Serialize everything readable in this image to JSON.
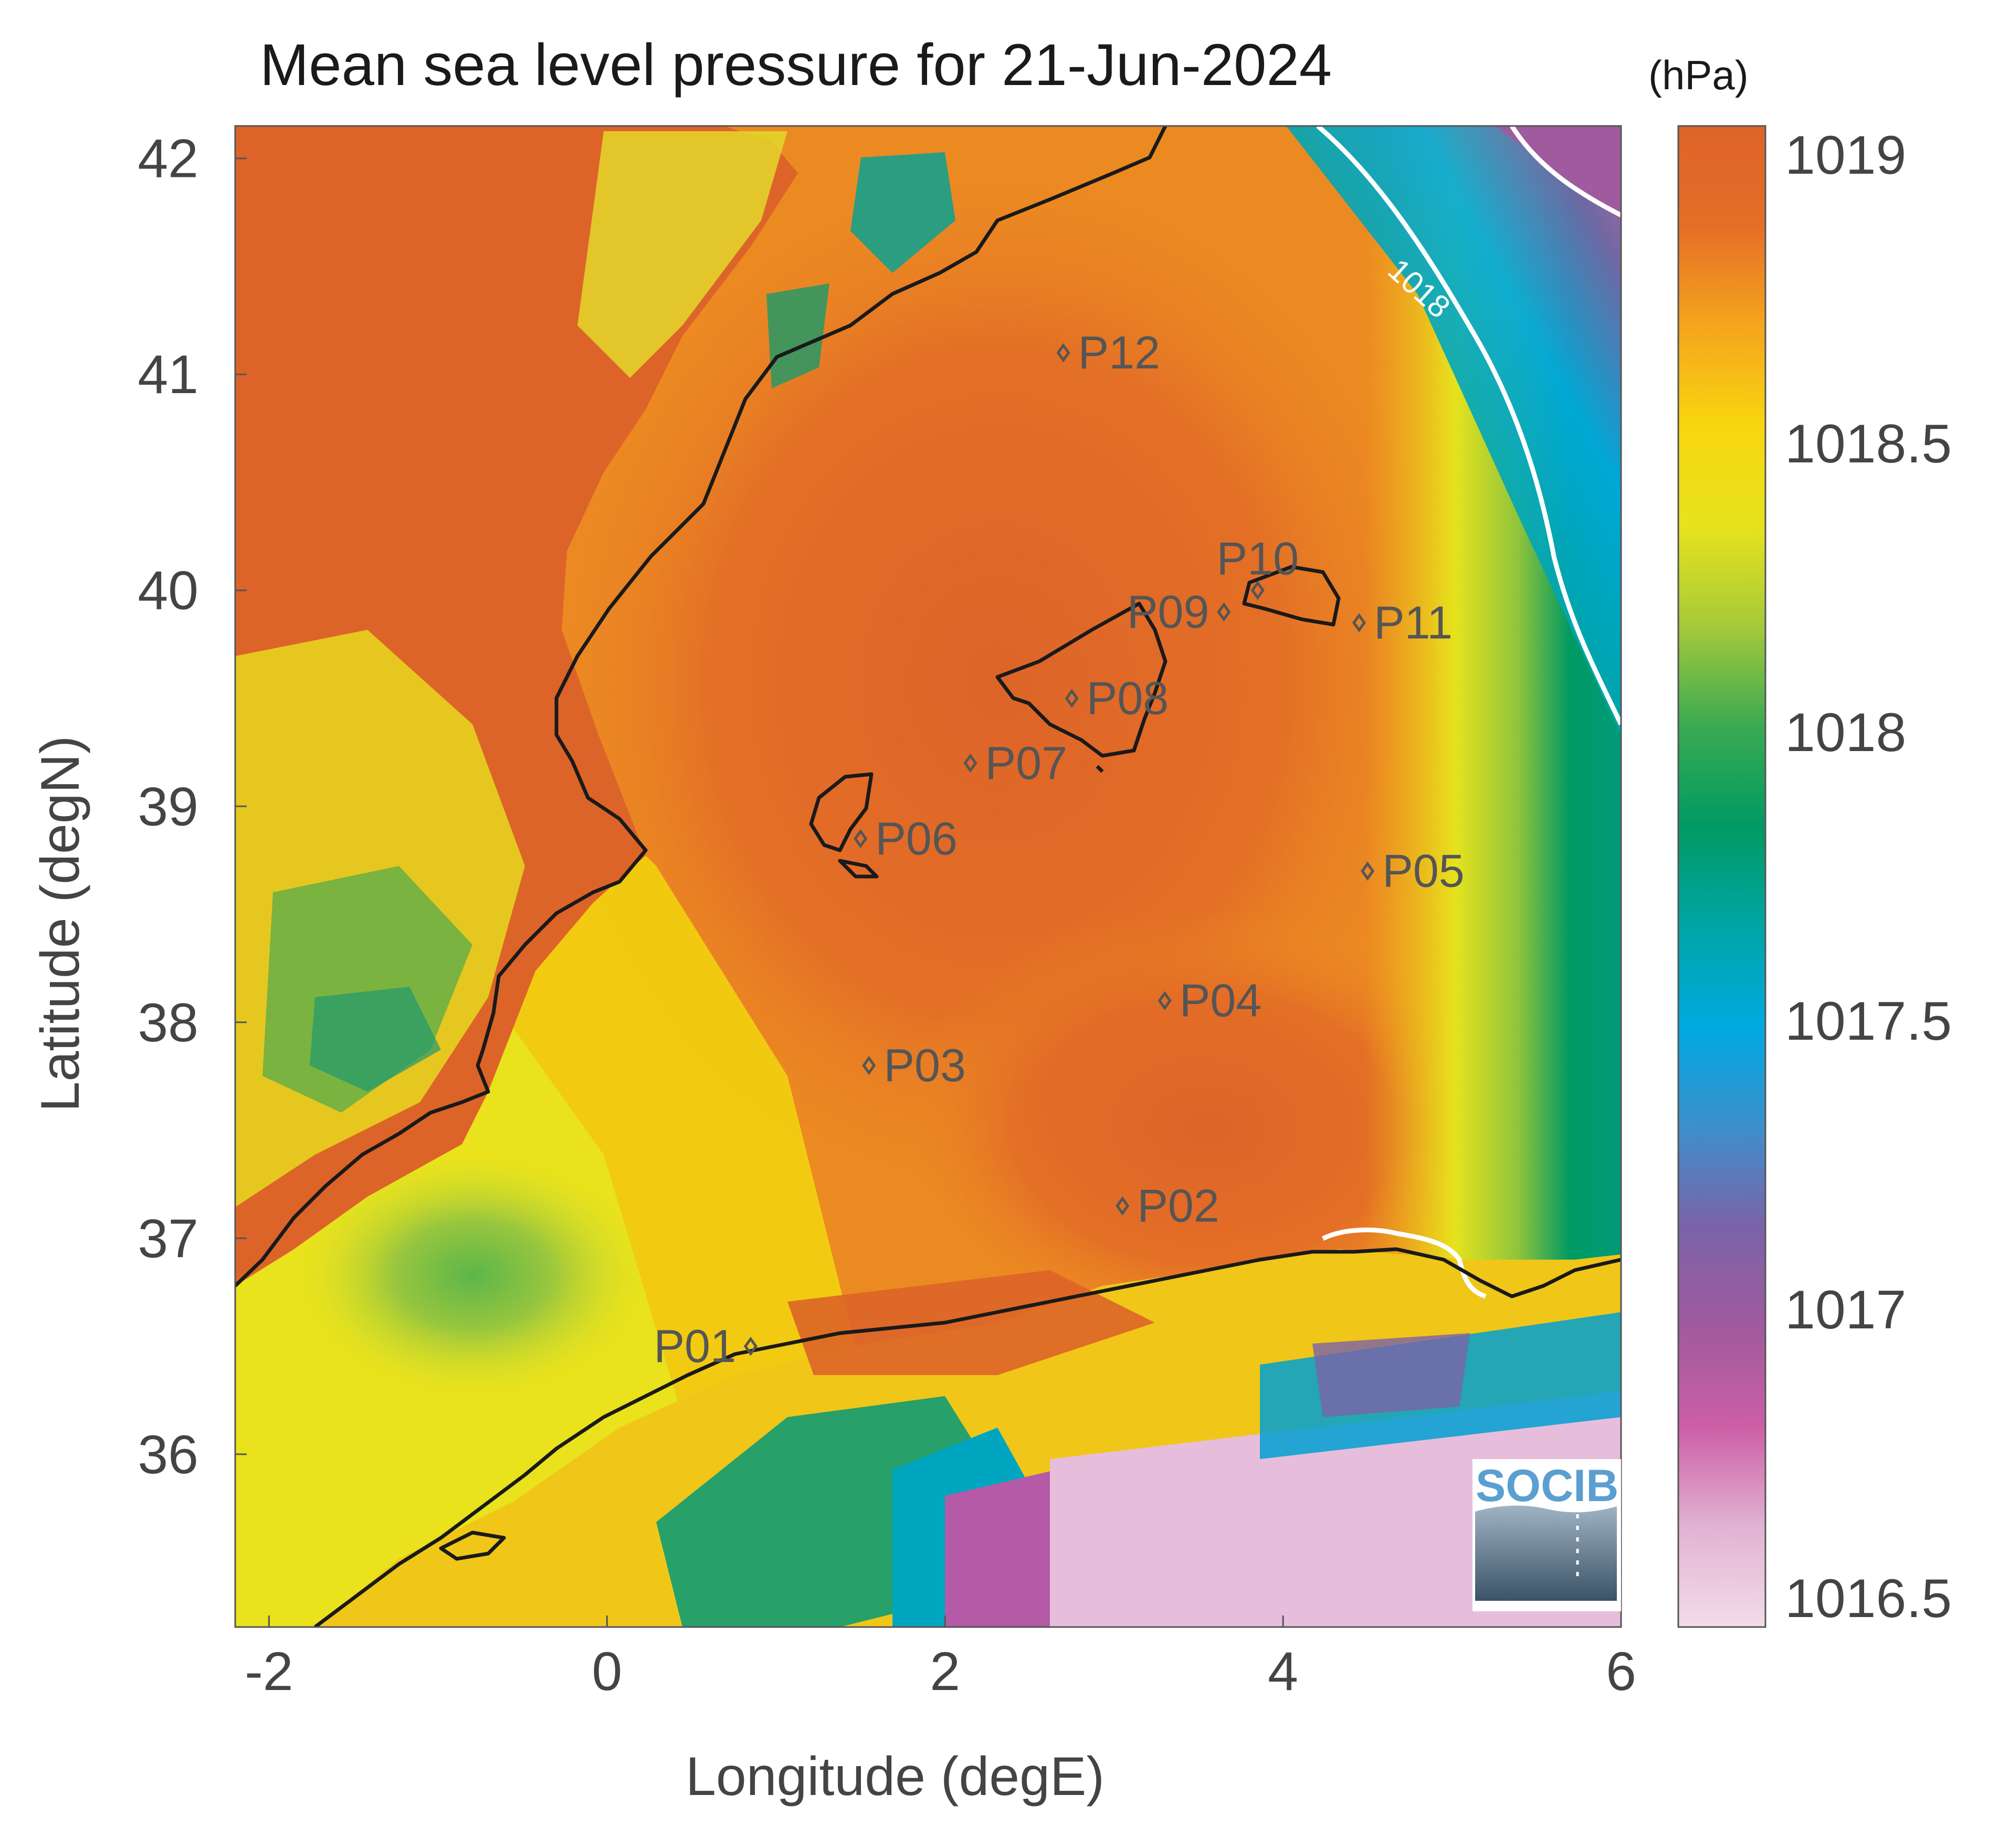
{
  "title": "Mean sea level pressure for 21-Jun-2024",
  "units": "(hPa)",
  "xlabel": "Longitude (degE)",
  "ylabel": "Latitude (degN)",
  "x_ticks": [
    "-2",
    "0",
    "2",
    "4",
    "6"
  ],
  "y_ticks": [
    "42",
    "41",
    "40",
    "39",
    "38",
    "37",
    "36"
  ],
  "colorbar": {
    "ticks": [
      "1019",
      "1018.5",
      "1018",
      "1017.5",
      "1017",
      "1016.5"
    ],
    "stops": [
      "#f2dcea",
      "#e2b2d2",
      "#cc5fa6",
      "#a05a9e",
      "#7b63a8",
      "#3d8fcc",
      "#00a9e0",
      "#00a5a5",
      "#009a63",
      "#3aaa52",
      "#a7c93a",
      "#e6e31d",
      "#f8d60f",
      "#f4a51d",
      "#e56e27",
      "#dd6428"
    ]
  },
  "contour_label": "1018",
  "stations": [
    {
      "id": "P01",
      "lon": 0.85,
      "lat": 36.5
    },
    {
      "id": "P02",
      "lon": 3.05,
      "lat": 37.15
    },
    {
      "id": "P03",
      "lon": 1.55,
      "lat": 37.8
    },
    {
      "id": "P04",
      "lon": 3.3,
      "lat": 38.1
    },
    {
      "id": "P05",
      "lon": 4.5,
      "lat": 38.7
    },
    {
      "id": "P06",
      "lon": 1.5,
      "lat": 38.85
    },
    {
      "id": "P07",
      "lon": 2.15,
      "lat": 39.2
    },
    {
      "id": "P08",
      "lon": 2.75,
      "lat": 39.5
    },
    {
      "id": "P09",
      "lon": 3.65,
      "lat": 39.9
    },
    {
      "id": "P10",
      "lon": 3.85,
      "lat": 40.0
    },
    {
      "id": "P11",
      "lon": 4.45,
      "lat": 39.85
    },
    {
      "id": "P12",
      "lon": 2.7,
      "lat": 41.1
    }
  ],
  "logo_text": "SOCIB"
}
